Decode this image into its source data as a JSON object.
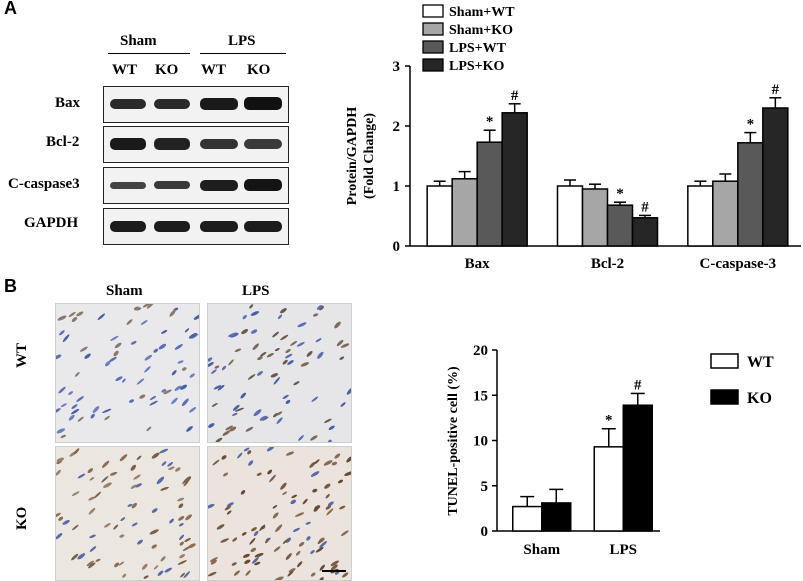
{
  "panelA": {
    "letter": "A",
    "blot": {
      "groups": [
        "Sham",
        "LPS"
      ],
      "lanes": [
        "WT",
        "KO",
        "WT",
        "KO"
      ],
      "rows": [
        "Bax",
        "Bcl-2",
        "C-caspase3",
        "GAPDH"
      ]
    }
  },
  "panelB": {
    "letter": "B",
    "ihc": {
      "cols": [
        "Sham",
        "LPS"
      ],
      "rows": [
        "WT",
        "KO"
      ]
    }
  },
  "chart_data": [
    {
      "type": "bar",
      "categories": [
        "Bax",
        "Bcl-2",
        "C-caspase-3"
      ],
      "series": [
        {
          "name": "Sham+WT",
          "values": [
            1.0,
            1.0,
            1.0
          ],
          "errors": [
            0.08,
            0.1,
            0.08
          ],
          "marks": [
            "",
            "",
            ""
          ],
          "color": "#ffffff"
        },
        {
          "name": "Sham+KO",
          "values": [
            1.12,
            0.95,
            1.08
          ],
          "errors": [
            0.12,
            0.08,
            0.12
          ],
          "marks": [
            "",
            "",
            ""
          ],
          "color": "#a6a6a6"
        },
        {
          "name": "LPS+WT",
          "values": [
            1.73,
            0.68,
            1.72
          ],
          "errors": [
            0.2,
            0.05,
            0.17
          ],
          "marks": [
            "*",
            "*",
            "*"
          ],
          "color": "#595959"
        },
        {
          "name": "LPS+KO",
          "values": [
            2.22,
            0.47,
            2.3
          ],
          "errors": [
            0.15,
            0.04,
            0.17
          ],
          "marks": [
            "#",
            "#",
            "#"
          ],
          "color": "#262626"
        }
      ],
      "ylabel": "Protein/GAPDH (Fold Change)",
      "ylabel_lines": [
        "Protein/GAPDH",
        "(Fold Change)"
      ],
      "ylim": [
        0,
        3
      ],
      "yticks": [
        0,
        1,
        2,
        3
      ],
      "legend": "top-right"
    },
    {
      "type": "bar",
      "categories": [
        "Sham",
        "LPS"
      ],
      "series": [
        {
          "name": "WT",
          "values": [
            2.7,
            9.3
          ],
          "errors": [
            1.1,
            2.0
          ],
          "marks": [
            "",
            "*"
          ],
          "color": "#ffffff"
        },
        {
          "name": "KO",
          "values": [
            3.1,
            13.9
          ],
          "errors": [
            1.5,
            1.3
          ],
          "marks": [
            "",
            "#"
          ],
          "color": "#000000"
        }
      ],
      "ylabel": "TUNEL-positive cell (%)",
      "ylim": [
        0,
        20
      ],
      "yticks": [
        0,
        5,
        10,
        15,
        20
      ],
      "legend": "right"
    }
  ]
}
